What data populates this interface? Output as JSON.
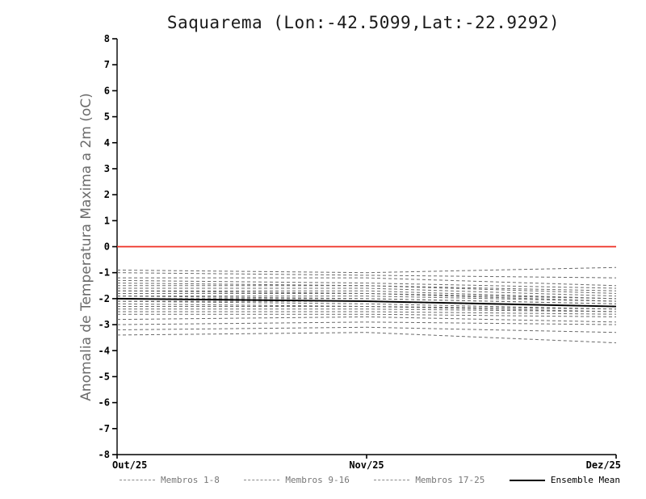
{
  "chart_data": {
    "type": "line",
    "title": "Saquarema (Lon:-42.5099,Lat:-22.9292)",
    "ylabel": "Anomalia de Temperatura Maxima a 2m (oC)",
    "xlabel": "",
    "x_ticks": [
      "Out/25",
      "Nov/25",
      "Dez/25"
    ],
    "ylim": [
      -8,
      8
    ],
    "y_tick_step": 1,
    "grid": "off",
    "legend_position": "bottom",
    "zero_line": {
      "value": 0,
      "color": "#ee2e22"
    },
    "colors": {
      "member": "#6a6a6a",
      "mean": "#000000",
      "axis": "#000000",
      "ylabel": "#6b6b6b"
    },
    "legend": [
      {
        "label": "Membros 1-8",
        "style": "dashed"
      },
      {
        "label": "Membros 9-16",
        "style": "dashed"
      },
      {
        "label": "Membros 17-25",
        "style": "dashed"
      },
      {
        "label": "Ensemble Mean",
        "style": "solid"
      }
    ],
    "series": [
      {
        "name": "Membro 1",
        "style": "dashed",
        "values": [
          -0.9,
          -1.0,
          -0.8
        ]
      },
      {
        "name": "Membro 2",
        "style": "dashed",
        "values": [
          -1.0,
          -1.1,
          -1.2
        ]
      },
      {
        "name": "Membro 3",
        "style": "dashed",
        "values": [
          -1.2,
          -1.2,
          -1.5
        ]
      },
      {
        "name": "Membro 4",
        "style": "dashed",
        "values": [
          -1.3,
          -1.4,
          -1.6
        ]
      },
      {
        "name": "Membro 5",
        "style": "dashed",
        "values": [
          -1.4,
          -1.5,
          -1.7
        ]
      },
      {
        "name": "Membro 6",
        "style": "dashed",
        "values": [
          -1.5,
          -1.5,
          -1.8
        ]
      },
      {
        "name": "Membro 7",
        "style": "dashed",
        "values": [
          -1.6,
          -1.6,
          -1.9
        ]
      },
      {
        "name": "Membro 8",
        "style": "dashed",
        "values": [
          -1.7,
          -1.7,
          -2.0
        ]
      },
      {
        "name": "Membro 9",
        "style": "dashed",
        "values": [
          -1.7,
          -1.8,
          -2.0
        ]
      },
      {
        "name": "Membro 10",
        "style": "dashed",
        "values": [
          -1.8,
          -1.8,
          -2.1
        ]
      },
      {
        "name": "Membro 11",
        "style": "dashed",
        "values": [
          -1.9,
          -1.9,
          -2.1
        ]
      },
      {
        "name": "Membro 12",
        "style": "dashed",
        "values": [
          -1.9,
          -2.0,
          -2.2
        ]
      },
      {
        "name": "Membro 13",
        "style": "dashed",
        "values": [
          -2.0,
          -2.0,
          -2.2
        ]
      },
      {
        "name": "Membro 14",
        "style": "dashed",
        "values": [
          -2.0,
          -2.1,
          -2.3
        ]
      },
      {
        "name": "Membro 15",
        "style": "dashed",
        "values": [
          -2.1,
          -2.1,
          -2.3
        ]
      },
      {
        "name": "Membro 16",
        "style": "dashed",
        "values": [
          -2.1,
          -2.2,
          -2.4
        ]
      },
      {
        "name": "Membro 17",
        "style": "dashed",
        "values": [
          -2.2,
          -2.3,
          -2.4
        ]
      },
      {
        "name": "Membro 18",
        "style": "dashed",
        "values": [
          -2.3,
          -2.3,
          -2.5
        ]
      },
      {
        "name": "Membro 19",
        "style": "dashed",
        "values": [
          -2.4,
          -2.4,
          -2.5
        ]
      },
      {
        "name": "Membro 20",
        "style": "dashed",
        "values": [
          -2.5,
          -2.5,
          -2.6
        ]
      },
      {
        "name": "Membro 21",
        "style": "dashed",
        "values": [
          -2.6,
          -2.6,
          -2.7
        ]
      },
      {
        "name": "Membro 22",
        "style": "dashed",
        "values": [
          -2.8,
          -2.7,
          -2.9
        ]
      },
      {
        "name": "Membro 23",
        "style": "dashed",
        "values": [
          -3.0,
          -2.9,
          -3.0
        ]
      },
      {
        "name": "Membro 24",
        "style": "dashed",
        "values": [
          -3.2,
          -3.1,
          -3.3
        ]
      },
      {
        "name": "Membro 25",
        "style": "dashed",
        "values": [
          -3.4,
          -3.3,
          -3.7
        ]
      },
      {
        "name": "Ensemble Mean",
        "style": "solid",
        "values": [
          -2.0,
          -2.1,
          -2.3
        ]
      }
    ]
  }
}
